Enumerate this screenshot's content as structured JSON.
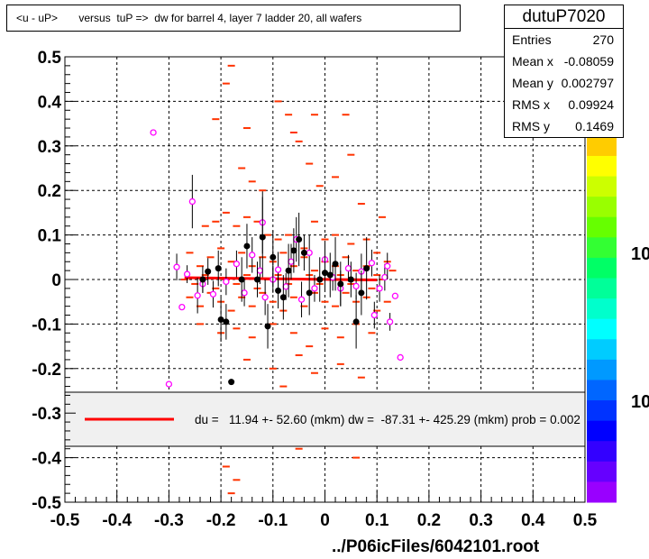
{
  "title": "<u - uP>       versus  tuP =>  dw for barrel 4, layer 7 ladder 20, all wafers",
  "stats": {
    "name": "dutuP7020",
    "rows": [
      {
        "label": "Entries",
        "value": "270"
      },
      {
        "label": "Mean x",
        "value": "-0.08059"
      },
      {
        "label": "Mean y",
        "value": "0.002797"
      },
      {
        "label": "RMS x",
        "value": "0.09924"
      },
      {
        "label": "RMS y",
        "value": "0.1469"
      }
    ]
  },
  "fit_legend": "du =   11.94 +- 52.60 (mkm) dw =  -87.31 +- 425.29 (mkm) prob = 0.002",
  "footer": "../P06icFiles/6042101.root",
  "colors": {
    "hist": "#ff3300",
    "fit": "#ff0000",
    "profile": "#000000",
    "alt_profile": "#ff00ff"
  },
  "chart_data": {
    "type": "scatter",
    "xlim": [
      -0.5,
      0.5
    ],
    "ylim": [
      -0.5,
      0.5
    ],
    "grid": true,
    "x_ticks": [
      "-0.5",
      "-0.4",
      "-0.3",
      "-0.2",
      "-0.1",
      "0",
      "0.1",
      "0.2",
      "0.3",
      "0.4",
      "0.5"
    ],
    "y_ticks": [
      "-0.5",
      "-0.4",
      "-0.3",
      "-0.2",
      "-0.1",
      "0",
      "0.1",
      "0.2",
      "0.3",
      "0.4",
      "0.5"
    ],
    "color_scale_labels": [
      "10",
      "10"
    ],
    "hist_cells": [
      [
        -0.19,
        0.44
      ],
      [
        -0.18,
        0.48
      ],
      [
        -0.21,
        0.36
      ],
      [
        -0.15,
        0.34
      ],
      [
        -0.09,
        0.4
      ],
      [
        -0.07,
        0.37
      ],
      [
        -0.06,
        0.33
      ],
      [
        -0.05,
        0.31
      ],
      [
        -0.03,
        0.26
      ],
      [
        -0.02,
        0.37
      ],
      [
        0.04,
        0.37
      ],
      [
        0.05,
        0.28
      ],
      [
        -0.16,
        0.25
      ],
      [
        -0.14,
        0.22
      ],
      [
        -0.12,
        0.2
      ],
      [
        -0.01,
        0.21
      ],
      [
        0.02,
        0.23
      ],
      [
        0.07,
        0.17
      ],
      [
        0.11,
        0.14
      ],
      [
        -0.23,
        0.12
      ],
      [
        -0.21,
        0.13
      ],
      [
        -0.19,
        0.15
      ],
      [
        -0.17,
        0.12
      ],
      [
        -0.15,
        0.14
      ],
      [
        -0.13,
        0.13
      ],
      [
        -0.11,
        0.1
      ],
      [
        -0.09,
        0.09
      ],
      [
        -0.07,
        0.1
      ],
      [
        -0.04,
        0.07
      ],
      [
        -0.02,
        0.13
      ],
      [
        0.0,
        0.09
      ],
      [
        0.02,
        0.1
      ],
      [
        0.05,
        0.08
      ],
      [
        0.08,
        0.09
      ],
      [
        0.1,
        0.06
      ],
      [
        0.12,
        0.04
      ],
      [
        -0.26,
        0.06
      ],
      [
        -0.24,
        0.03
      ],
      [
        -0.22,
        0.05
      ],
      [
        -0.2,
        0.07
      ],
      [
        -0.18,
        0.04
      ],
      [
        -0.16,
        0.06
      ],
      [
        -0.14,
        0.03
      ],
      [
        -0.12,
        0.05
      ],
      [
        -0.1,
        0.04
      ],
      [
        -0.08,
        0.06
      ],
      [
        -0.06,
        0.03
      ],
      [
        -0.04,
        0.05
      ],
      [
        -0.02,
        0.02
      ],
      [
        0.0,
        0.04
      ],
      [
        0.02,
        0.03
      ],
      [
        0.04,
        0.05
      ],
      [
        0.06,
        0.02
      ],
      [
        0.08,
        0.03
      ],
      [
        0.1,
        0.01
      ],
      [
        0.13,
        0.02
      ],
      [
        -0.27,
        0.0
      ],
      [
        -0.25,
        -0.01
      ],
      [
        -0.23,
        0.01
      ],
      [
        -0.21,
        -0.02
      ],
      [
        -0.19,
        0.0
      ],
      [
        -0.17,
        -0.01
      ],
      [
        -0.15,
        0.01
      ],
      [
        -0.13,
        -0.02
      ],
      [
        -0.11,
        0.0
      ],
      [
        -0.09,
        0.01
      ],
      [
        -0.07,
        -0.01
      ],
      [
        -0.05,
        0.0
      ],
      [
        -0.03,
        0.01
      ],
      [
        -0.01,
        -0.01
      ],
      [
        0.01,
        0.0
      ],
      [
        0.03,
        0.01
      ],
      [
        0.05,
        -0.01
      ],
      [
        0.07,
        0.0
      ],
      [
        0.09,
        -0.02
      ],
      [
        0.11,
        0.0
      ],
      [
        -0.26,
        -0.04
      ],
      [
        -0.24,
        -0.06
      ],
      [
        -0.22,
        -0.03
      ],
      [
        -0.2,
        -0.05
      ],
      [
        -0.18,
        -0.07
      ],
      [
        -0.16,
        -0.04
      ],
      [
        -0.14,
        -0.06
      ],
      [
        -0.12,
        -0.03
      ],
      [
        -0.1,
        -0.05
      ],
      [
        -0.08,
        -0.07
      ],
      [
        -0.06,
        -0.04
      ],
      [
        -0.04,
        -0.06
      ],
      [
        -0.02,
        -0.03
      ],
      [
        0.0,
        -0.05
      ],
      [
        0.02,
        -0.06
      ],
      [
        0.04,
        -0.03
      ],
      [
        0.06,
        -0.05
      ],
      [
        0.08,
        -0.04
      ],
      [
        0.1,
        -0.07
      ],
      [
        0.12,
        -0.05
      ],
      [
        -0.24,
        -0.1
      ],
      [
        -0.2,
        -0.12
      ],
      [
        -0.17,
        -0.11
      ],
      [
        -0.14,
        -0.13
      ],
      [
        -0.1,
        -0.1
      ],
      [
        -0.06,
        -0.12
      ],
      [
        -0.03,
        -0.15
      ],
      [
        0.0,
        -0.11
      ],
      [
        0.03,
        -0.13
      ],
      [
        0.06,
        -0.1
      ],
      [
        0.09,
        -0.12
      ],
      [
        -0.15,
        -0.18
      ],
      [
        -0.1,
        -0.2
      ],
      [
        -0.05,
        -0.17
      ],
      [
        -0.02,
        -0.21
      ],
      [
        0.03,
        -0.19
      ],
      [
        0.07,
        -0.22
      ],
      [
        -0.08,
        -0.24
      ],
      [
        -0.05,
        -0.38
      ],
      [
        0.06,
        -0.4
      ],
      [
        -0.19,
        -0.42
      ],
      [
        -0.18,
        -0.48
      ],
      [
        -0.17,
        -0.45
      ]
    ],
    "profile_points": [
      {
        "x": -0.235,
        "y": 0.0,
        "e": 0.03
      },
      {
        "x": -0.225,
        "y": 0.018,
        "e": 0.03
      },
      {
        "x": -0.205,
        "y": 0.025,
        "e": 0.04
      },
      {
        "x": -0.2,
        "y": -0.09,
        "e": 0.05
      },
      {
        "x": -0.19,
        "y": -0.095,
        "e": 0.04
      },
      {
        "x": -0.18,
        "y": -0.23,
        "e": 0.0
      },
      {
        "x": -0.16,
        "y": 0.0,
        "e": 0.05
      },
      {
        "x": -0.15,
        "y": 0.075,
        "e": 0.05
      },
      {
        "x": -0.13,
        "y": 0.0,
        "e": 0.04
      },
      {
        "x": -0.12,
        "y": 0.095,
        "e": 0.09
      },
      {
        "x": -0.11,
        "y": -0.105,
        "e": 0.05
      },
      {
        "x": -0.1,
        "y": 0.05,
        "e": 0.06
      },
      {
        "x": -0.09,
        "y": -0.025,
        "e": 0.04
      },
      {
        "x": -0.08,
        "y": -0.04,
        "e": 0.05
      },
      {
        "x": -0.07,
        "y": 0.02,
        "e": 0.06
      },
      {
        "x": -0.06,
        "y": 0.065,
        "e": 0.05
      },
      {
        "x": -0.05,
        "y": 0.09,
        "e": 0.06
      },
      {
        "x": -0.04,
        "y": 0.06,
        "e": 0.04
      },
      {
        "x": -0.03,
        "y": -0.03,
        "e": 0.05
      },
      {
        "x": -0.01,
        "y": 0.0,
        "e": 0.05
      },
      {
        "x": 0.0,
        "y": 0.015,
        "e": 0.04
      },
      {
        "x": 0.01,
        "y": 0.01,
        "e": 0.05
      },
      {
        "x": 0.02,
        "y": 0.035,
        "e": 0.06
      },
      {
        "x": 0.03,
        "y": -0.01,
        "e": 0.05
      },
      {
        "x": 0.05,
        "y": 0.0,
        "e": 0.04
      },
      {
        "x": 0.06,
        "y": -0.095,
        "e": 0.06
      },
      {
        "x": 0.07,
        "y": -0.03,
        "e": 0.05
      },
      {
        "x": 0.08,
        "y": 0.025,
        "e": 0.07
      }
    ],
    "alt_points": [
      {
        "x": -0.33,
        "y": 0.33,
        "e": 0.0
      },
      {
        "x": -0.3,
        "y": -0.235,
        "e": 0.0
      },
      {
        "x": -0.285,
        "y": 0.028,
        "e": 0.03
      },
      {
        "x": -0.275,
        "y": -0.062,
        "e": 0.0
      },
      {
        "x": -0.265,
        "y": 0.012,
        "e": 0.02
      },
      {
        "x": -0.255,
        "y": 0.175,
        "e": 0.06
      },
      {
        "x": -0.245,
        "y": -0.036,
        "e": 0.04
      },
      {
        "x": -0.235,
        "y": -0.01,
        "e": 0.02
      },
      {
        "x": -0.215,
        "y": -0.033,
        "e": 0.03
      },
      {
        "x": -0.19,
        "y": -0.005,
        "e": 0.03
      },
      {
        "x": -0.17,
        "y": 0.035,
        "e": 0.03
      },
      {
        "x": -0.155,
        "y": -0.03,
        "e": 0.03
      },
      {
        "x": -0.14,
        "y": 0.055,
        "e": 0.04
      },
      {
        "x": -0.125,
        "y": 0.02,
        "e": 0.03
      },
      {
        "x": -0.12,
        "y": 0.128,
        "e": 0.07
      },
      {
        "x": -0.115,
        "y": -0.04,
        "e": 0.04
      },
      {
        "x": -0.1,
        "y": 0.0,
        "e": 0.03
      },
      {
        "x": -0.09,
        "y": 0.022,
        "e": 0.04
      },
      {
        "x": -0.075,
        "y": -0.016,
        "e": 0.03
      },
      {
        "x": -0.065,
        "y": 0.04,
        "e": 0.04
      },
      {
        "x": -0.055,
        "y": 0.09,
        "e": 0.05
      },
      {
        "x": -0.045,
        "y": -0.045,
        "e": 0.04
      },
      {
        "x": -0.03,
        "y": 0.06,
        "e": 0.04
      },
      {
        "x": -0.02,
        "y": -0.02,
        "e": 0.03
      },
      {
        "x": 0.0,
        "y": 0.045,
        "e": 0.04
      },
      {
        "x": 0.015,
        "y": 0.005,
        "e": 0.03
      },
      {
        "x": 0.03,
        "y": -0.02,
        "e": 0.04
      },
      {
        "x": 0.045,
        "y": 0.025,
        "e": 0.03
      },
      {
        "x": 0.06,
        "y": -0.015,
        "e": 0.03
      },
      {
        "x": 0.07,
        "y": 0.018,
        "e": 0.04
      },
      {
        "x": 0.09,
        "y": 0.037,
        "e": 0.03
      },
      {
        "x": 0.095,
        "y": -0.08,
        "e": 0.03
      },
      {
        "x": 0.105,
        "y": -0.02,
        "e": 0.03
      },
      {
        "x": 0.115,
        "y": 0.005,
        "e": 0.03
      },
      {
        "x": 0.12,
        "y": 0.03,
        "e": 0.03
      },
      {
        "x": 0.125,
        "y": -0.095,
        "e": 0.02
      },
      {
        "x": 0.135,
        "y": -0.037,
        "e": 0.0
      },
      {
        "x": 0.145,
        "y": -0.175,
        "e": 0.0
      }
    ],
    "fit_line": {
      "x": [
        -0.27,
        0.1
      ],
      "y": [
        0.004,
        -0.001
      ]
    }
  }
}
